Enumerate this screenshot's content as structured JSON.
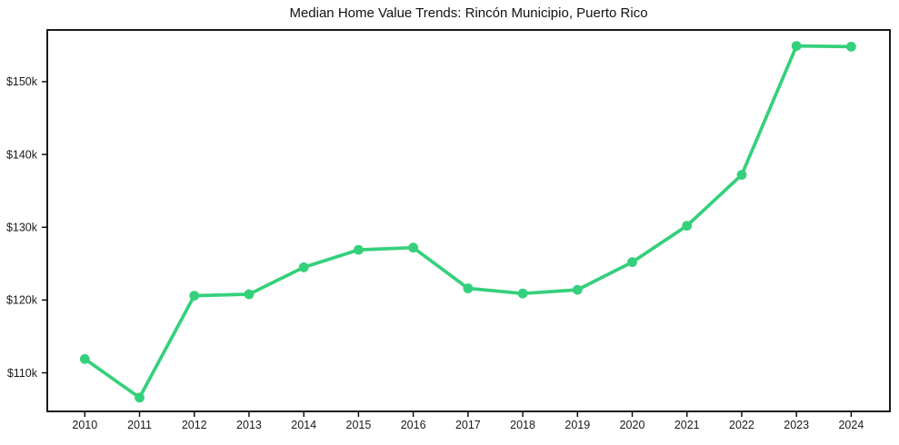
{
  "chart_data": {
    "type": "line",
    "title": "Median Home Value Trends: Rincón Municipio, Puerto Rico",
    "xlabel": "",
    "ylabel": "",
    "x": [
      2010,
      2011,
      2012,
      2013,
      2014,
      2015,
      2016,
      2017,
      2018,
      2019,
      2020,
      2021,
      2022,
      2023,
      2024
    ],
    "x_tick_labels": [
      "2010",
      "2011",
      "2012",
      "2013",
      "2014",
      "2015",
      "2016",
      "2017",
      "2018",
      "2019",
      "2020",
      "2021",
      "2022",
      "2023",
      "2024"
    ],
    "series": [
      {
        "name": "Median Home Value",
        "values": [
          111900,
          106600,
          120600,
          120800,
          124500,
          126900,
          127200,
          121600,
          120900,
          121400,
          125200,
          130200,
          137200,
          154900,
          154800
        ]
      }
    ],
    "y_ticks": [
      110000,
      120000,
      130000,
      140000,
      150000
    ],
    "y_tick_labels": [
      "$110k",
      "$120k",
      "$130k",
      "$140k",
      "$150k"
    ],
    "ylim": [
      104700,
      157100
    ],
    "grid": false,
    "legend": "none",
    "line_color": "#35d07c",
    "marker": "circle",
    "frame_color": "#000000",
    "background_color": "#ffffff",
    "text_color": "#1a1a1a"
  }
}
